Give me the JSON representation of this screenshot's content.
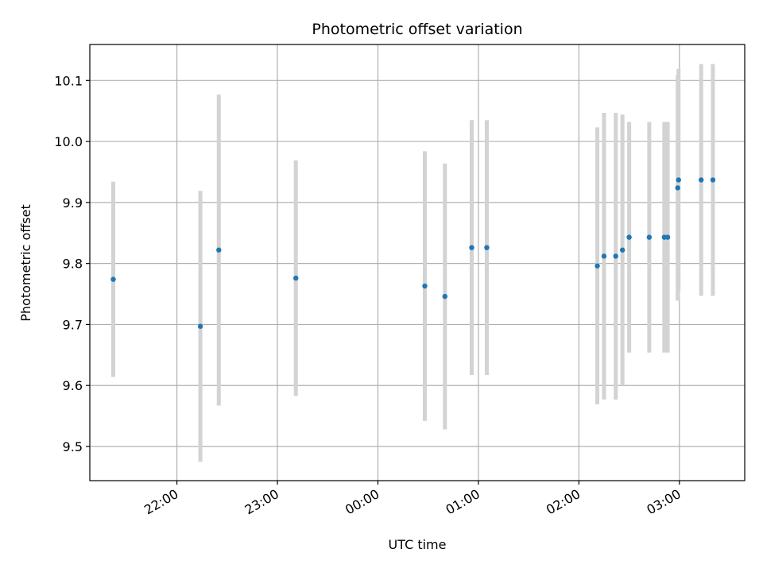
{
  "chart_data": {
    "type": "scatter",
    "title": "Photometric offset variation",
    "xlabel": "UTC time",
    "ylabel": "Photometric offset",
    "xlim": [
      "2024-01-01T21:08:00",
      "2024-01-02T03:39:00"
    ],
    "ylim": [
      9.444,
      10.159
    ],
    "x_ticks": [
      {
        "value": "2024-01-01T22:00:00",
        "label": "22:00"
      },
      {
        "value": "2024-01-01T23:00:00",
        "label": "23:00"
      },
      {
        "value": "2024-01-02T00:00:00",
        "label": "00:00"
      },
      {
        "value": "2024-01-02T01:00:00",
        "label": "01:00"
      },
      {
        "value": "2024-01-02T02:00:00",
        "label": "02:00"
      },
      {
        "value": "2024-01-02T03:00:00",
        "label": "03:00"
      }
    ],
    "y_ticks": [
      {
        "value": 9.5,
        "label": "9.5"
      },
      {
        "value": 9.6,
        "label": "9.6"
      },
      {
        "value": 9.7,
        "label": "9.7"
      },
      {
        "value": 9.8,
        "label": "9.8"
      },
      {
        "value": 9.9,
        "label": "9.9"
      },
      {
        "value": 10.0,
        "label": "10.0"
      },
      {
        "value": 10.1,
        "label": "10.1"
      }
    ],
    "grid": true,
    "point_color": "#1f77b4",
    "errorbar_color": "#d3d3d3",
    "points": [
      {
        "x": "2024-01-01T21:22:00",
        "y": 9.774,
        "err": 0.16
      },
      {
        "x": "2024-01-01T22:14:00",
        "y": 9.697,
        "err": 0.222
      },
      {
        "x": "2024-01-01T22:25:00",
        "y": 9.822,
        "err": 0.255
      },
      {
        "x": "2024-01-01T23:11:00",
        "y": 9.776,
        "err": 0.193
      },
      {
        "x": "2024-01-02T00:28:00",
        "y": 9.763,
        "err": 0.221
      },
      {
        "x": "2024-01-02T00:40:00",
        "y": 9.746,
        "err": 0.218
      },
      {
        "x": "2024-01-02T00:56:00",
        "y": 9.826,
        "err": 0.209
      },
      {
        "x": "2024-01-02T01:05:00",
        "y": 9.826,
        "err": 0.209
      },
      {
        "x": "2024-01-02T02:11:00",
        "y": 9.796,
        "err": 0.227
      },
      {
        "x": "2024-01-02T02:15:00",
        "y": 9.812,
        "err": 0.235
      },
      {
        "x": "2024-01-02T02:22:00",
        "y": 9.812,
        "err": 0.235
      },
      {
        "x": "2024-01-02T02:26:00",
        "y": 9.822,
        "err": 0.222
      },
      {
        "x": "2024-01-02T02:30:00",
        "y": 9.843,
        "err": 0.189
      },
      {
        "x": "2024-01-02T02:42:00",
        "y": 9.843,
        "err": 0.189
      },
      {
        "x": "2024-01-02T02:51:00",
        "y": 9.843,
        "err": 0.189
      },
      {
        "x": "2024-01-02T02:53:00",
        "y": 9.843,
        "err": 0.189
      },
      {
        "x": "2024-01-02T02:59:00",
        "y": 9.924,
        "err": 0.185
      },
      {
        "x": "2024-01-02T02:59:30",
        "y": 9.937,
        "err": 0.182
      },
      {
        "x": "2024-01-02T03:13:00",
        "y": 9.937,
        "err": 0.19
      },
      {
        "x": "2024-01-02T03:20:00",
        "y": 9.937,
        "err": 0.19
      }
    ]
  }
}
